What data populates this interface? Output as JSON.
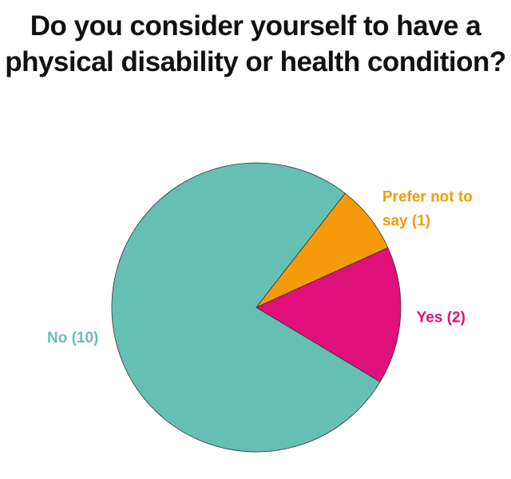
{
  "title_lines": [
    "Do you consider yourself to have a",
    "physical disability or health condition?"
  ],
  "chart_data": {
    "type": "pie",
    "title": "Do you consider yourself to have a physical disability or health condition?",
    "slices": [
      {
        "label": "No (10)",
        "label_lines": [
          "No (10)"
        ],
        "name": "No",
        "value": 10,
        "color": "#66bfb3"
      },
      {
        "label": "Prefer not to say (1)",
        "label_lines": [
          "Prefer not to",
          "say (1)"
        ],
        "name": "Prefer not to say",
        "value": 1,
        "color": "#f59b0b"
      },
      {
        "label": "Yes (2)",
        "label_lines": [
          "Yes (2)"
        ],
        "name": "Yes",
        "value": 2,
        "color": "#e0107a"
      }
    ],
    "legend": "none",
    "labels": "outside"
  }
}
